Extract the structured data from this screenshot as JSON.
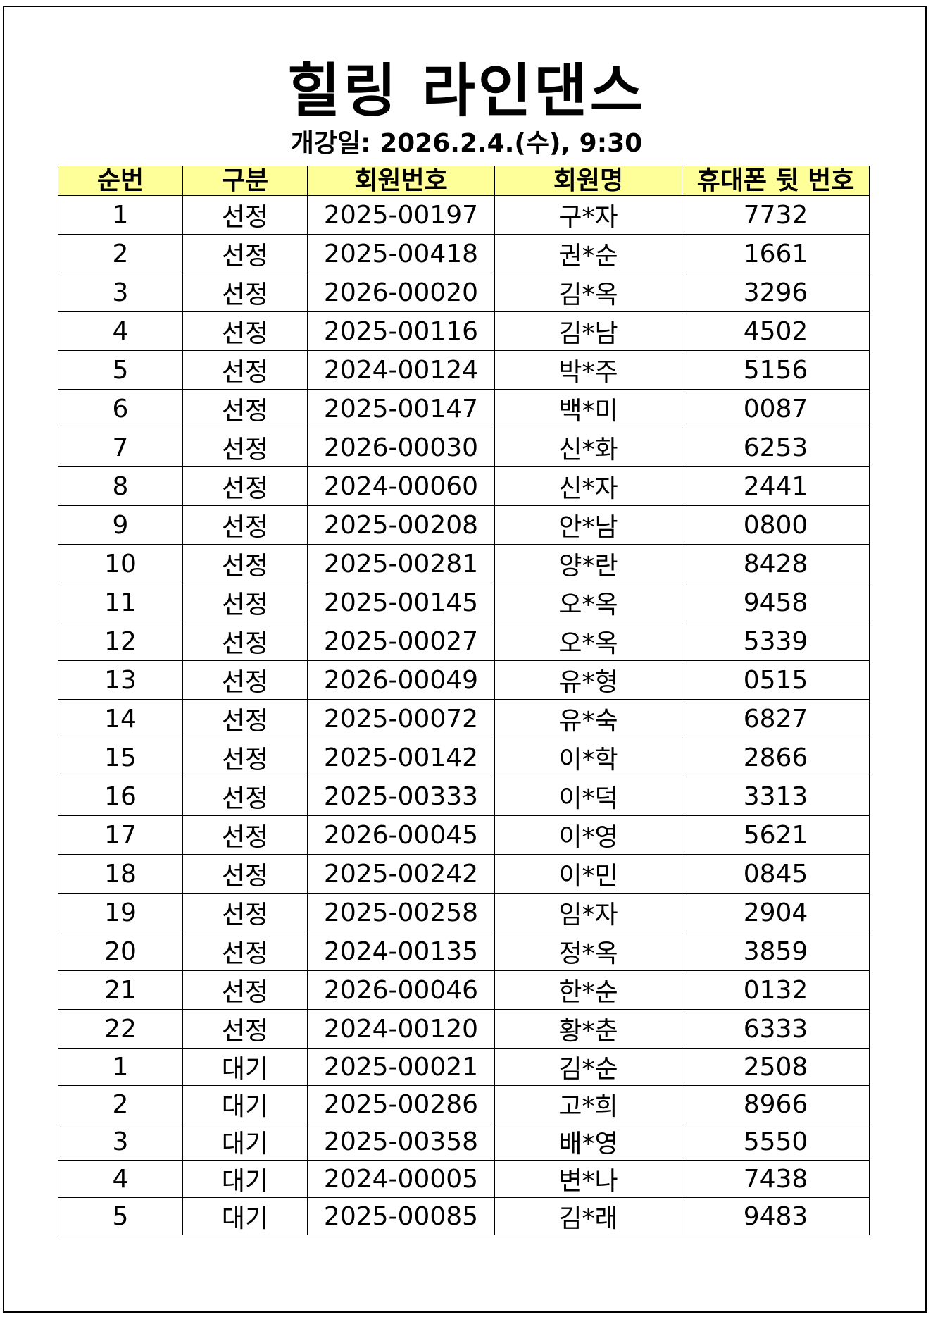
{
  "title": "힐링 라인댄스",
  "subtitle": "개강일: 2026.2.4.(수), 9:30",
  "header_bg": "#ffff99",
  "columns": [
    "순번",
    "구분",
    "회원번호",
    "회원명",
    "휴대폰 뒷 번호"
  ],
  "rows": [
    [
      "1",
      "선정",
      "2025-00197",
      "구*자",
      "7732"
    ],
    [
      "2",
      "선정",
      "2025-00418",
      "권*순",
      "1661"
    ],
    [
      "3",
      "선정",
      "2026-00020",
      "김*옥",
      "3296"
    ],
    [
      "4",
      "선정",
      "2025-00116",
      "김*남",
      "4502"
    ],
    [
      "5",
      "선정",
      "2024-00124",
      "박*주",
      "5156"
    ],
    [
      "6",
      "선정",
      "2025-00147",
      "백*미",
      "0087"
    ],
    [
      "7",
      "선정",
      "2026-00030",
      "신*화",
      "6253"
    ],
    [
      "8",
      "선정",
      "2024-00060",
      "신*자",
      "2441"
    ],
    [
      "9",
      "선정",
      "2025-00208",
      "안*남",
      "0800"
    ],
    [
      "10",
      "선정",
      "2025-00281",
      "양*란",
      "8428"
    ],
    [
      "11",
      "선정",
      "2025-00145",
      "오*옥",
      "9458"
    ],
    [
      "12",
      "선정",
      "2025-00027",
      "오*옥",
      "5339"
    ],
    [
      "13",
      "선정",
      "2026-00049",
      "유*형",
      "0515"
    ],
    [
      "14",
      "선정",
      "2025-00072",
      "유*숙",
      "6827"
    ],
    [
      "15",
      "선정",
      "2025-00142",
      "이*학",
      "2866"
    ],
    [
      "16",
      "선정",
      "2025-00333",
      "이*덕",
      "3313"
    ],
    [
      "17",
      "선정",
      "2026-00045",
      "이*영",
      "5621"
    ],
    [
      "18",
      "선정",
      "2025-00242",
      "이*민",
      "0845"
    ],
    [
      "19",
      "선정",
      "2025-00258",
      "임*자",
      "2904"
    ],
    [
      "20",
      "선정",
      "2024-00135",
      "정*옥",
      "3859"
    ],
    [
      "21",
      "선정",
      "2026-00046",
      "한*순",
      "0132"
    ],
    [
      "22",
      "선정",
      "2024-00120",
      "황*춘",
      "6333"
    ],
    [
      "1",
      "대기",
      "2025-00021",
      "김*순",
      "2508"
    ],
    [
      "2",
      "대기",
      "2025-00286",
      "고*희",
      "8966"
    ],
    [
      "3",
      "대기",
      "2025-00358",
      "배*영",
      "5550"
    ],
    [
      "4",
      "대기",
      "2024-00005",
      "변*나",
      "7438"
    ],
    [
      "5",
      "대기",
      "2025-00085",
      "김*래",
      "9483"
    ]
  ]
}
